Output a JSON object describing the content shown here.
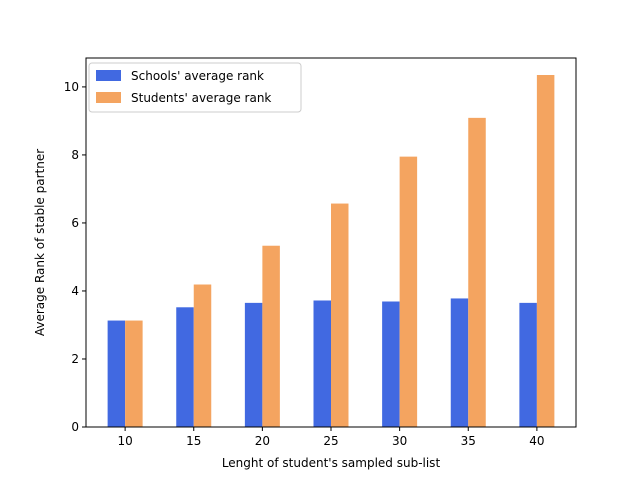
{
  "chart_data": {
    "type": "bar",
    "title": "",
    "xlabel": "Lenght of student's sampled sub-list",
    "ylabel": "Average Rank of stable partner",
    "categories": [
      "10",
      "15",
      "20",
      "25",
      "30",
      "35",
      "40"
    ],
    "series": [
      {
        "name": "Schools' average rank",
        "color": "#4169e1",
        "values": [
          3.13,
          3.52,
          3.65,
          3.72,
          3.69,
          3.78,
          3.65
        ]
      },
      {
        "name": "Students' average rank",
        "color": "#f4a460",
        "values": [
          3.13,
          4.19,
          5.33,
          6.57,
          7.95,
          9.09,
          10.35
        ]
      }
    ],
    "yticks": [
      "0",
      "2",
      "4",
      "6",
      "8",
      "10"
    ],
    "ylim": [
      0,
      10.85
    ],
    "grid": false,
    "legend_position": "top-left"
  }
}
